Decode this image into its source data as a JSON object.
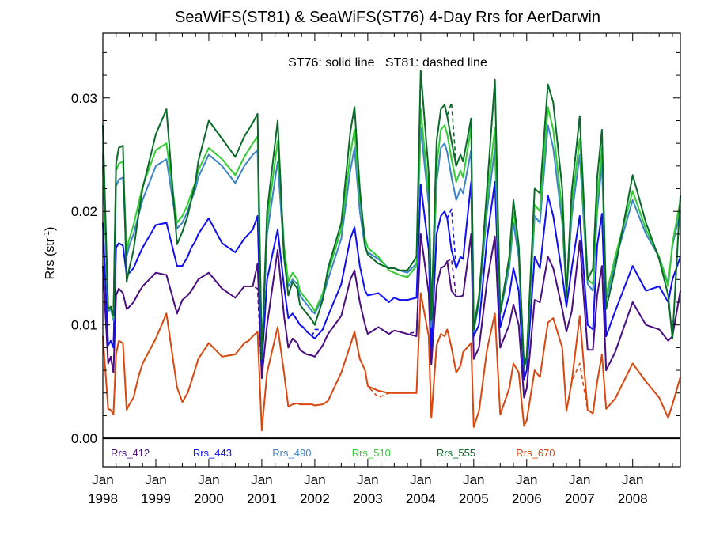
{
  "chart_data": {
    "type": "line",
    "title": "SeaWiFS(ST81) & SeaWiFS(ST76) 4-Day Rrs for AerDarwin",
    "annotation": "ST76: solid line   ST81: dashed line",
    "xlabel": "",
    "ylabel": "Rrs (str",
    "ylabel_sup": "-1",
    "ylabel_close": ")",
    "xlim": [
      1998.0,
      2008.9
    ],
    "ylim": [
      -0.0025,
      0.0357
    ],
    "x_ticks": [
      {
        "top": "Jan",
        "bottom": "1998",
        "value": 1998
      },
      {
        "top": "Jan",
        "bottom": "1999",
        "value": 1999
      },
      {
        "top": "Jan",
        "bottom": "2000",
        "value": 2000
      },
      {
        "top": "Jan",
        "bottom": "2001",
        "value": 2001
      },
      {
        "top": "Jan",
        "bottom": "2002",
        "value": 2002
      },
      {
        "top": "Jan",
        "bottom": "2003",
        "value": 2003
      },
      {
        "top": "Jan",
        "bottom": "2004",
        "value": 2004
      },
      {
        "top": "Jan",
        "bottom": "2005",
        "value": 2005
      },
      {
        "top": "Jan",
        "bottom": "2006",
        "value": 2006
      },
      {
        "top": "Jan",
        "bottom": "2007",
        "value": 2007
      },
      {
        "top": "Jan",
        "bottom": "2008",
        "value": 2008
      }
    ],
    "y_ticks": [
      {
        "value": 0.0,
        "label": "0.00"
      },
      {
        "value": 0.01,
        "label": "0.01"
      },
      {
        "value": 0.02,
        "label": "0.02"
      },
      {
        "value": 0.03,
        "label": "0.03"
      }
    ],
    "zero_line": 0.0,
    "x": [
      1998.0,
      1998.1,
      1998.15,
      1998.2,
      1998.25,
      1998.3,
      1998.38,
      1998.45,
      1998.5,
      1998.58,
      1998.67,
      1998.75,
      1999.0,
      1999.2,
      1999.4,
      1999.5,
      1999.6,
      1999.67,
      1999.75,
      1999.8,
      2000.0,
      2000.25,
      2000.5,
      2000.67,
      2000.75,
      2000.83,
      2000.92,
      2001.0,
      2001.1,
      2001.3,
      2001.42,
      2001.5,
      2001.58,
      2001.67,
      2001.72,
      2001.78,
      2001.85,
      2001.95,
      2002.0,
      2002.15,
      2002.25,
      2002.5,
      2002.67,
      2002.75,
      2002.85,
      2002.95,
      2003.0,
      2003.2,
      2003.4,
      2003.5,
      2003.6,
      2003.75,
      2003.92,
      2004.0,
      2004.15,
      2004.2,
      2004.3,
      2004.38,
      2004.45,
      2004.5,
      2004.58,
      2004.67,
      2004.75,
      2004.8,
      2004.95,
      2005.0,
      2005.1,
      2005.25,
      2005.4,
      2005.5,
      2005.67,
      2005.75,
      2005.85,
      2005.95,
      2006.0,
      2006.15,
      2006.25,
      2006.4,
      2006.5,
      2006.67,
      2006.75,
      2006.85,
      2007.0,
      2007.15,
      2007.25,
      2007.33,
      2007.42,
      2007.5,
      2007.67,
      2008.0,
      2008.25,
      2008.5,
      2008.67,
      2008.75,
      2008.9
    ],
    "series": [
      {
        "name": "Rrs_412",
        "color": "#4b0f82",
        "dashed": [
          {
            "i": 26,
            "y": 0.0132
          },
          {
            "i": 52,
            "y": 0.0094
          },
          {
            "i": 60,
            "y": 0.0158
          }
        ],
        "values": [
          0.0152,
          0.0066,
          0.0072,
          0.0058,
          0.0126,
          0.0132,
          0.0128,
          0.0114,
          0.0116,
          0.012,
          0.0128,
          0.0134,
          0.0146,
          0.0144,
          0.011,
          0.0122,
          0.0126,
          0.013,
          0.0136,
          0.014,
          0.0146,
          0.0132,
          0.0124,
          0.0134,
          0.0134,
          0.0134,
          0.0154,
          0.0053,
          0.01,
          0.0166,
          0.0108,
          0.008,
          0.0088,
          0.0084,
          0.0078,
          0.0076,
          0.0074,
          0.0073,
          0.0072,
          0.0082,
          0.0092,
          0.0108,
          0.014,
          0.0148,
          0.012,
          0.01,
          0.0092,
          0.0098,
          0.0092,
          0.0095,
          0.0094,
          0.0092,
          0.009,
          0.018,
          0.0128,
          0.0065,
          0.0134,
          0.015,
          0.0152,
          0.0156,
          0.013,
          0.0125,
          0.0125,
          0.0126,
          0.018,
          0.007,
          0.008,
          0.0138,
          0.0178,
          0.008,
          0.01,
          0.0118,
          0.01,
          0.0036,
          0.0044,
          0.0122,
          0.012,
          0.016,
          0.015,
          0.0114,
          0.0094,
          0.0112,
          0.0174,
          0.0078,
          0.0078,
          0.0126,
          0.0152,
          0.006,
          0.0076,
          0.012,
          0.01,
          0.0096,
          0.0086,
          0.009,
          0.013
        ]
      },
      {
        "name": "Rrs_443",
        "color": "#1010f0",
        "dashed": [
          {
            "i": 38,
            "y": 0.0096
          },
          {
            "i": 60,
            "y": 0.0202
          }
        ],
        "values": [
          0.019,
          0.0082,
          0.0086,
          0.008,
          0.0168,
          0.0172,
          0.017,
          0.0144,
          0.0146,
          0.015,
          0.016,
          0.0168,
          0.0188,
          0.019,
          0.0152,
          0.0152,
          0.016,
          0.0168,
          0.0174,
          0.018,
          0.0194,
          0.0172,
          0.0164,
          0.0176,
          0.018,
          0.0184,
          0.0196,
          0.0065,
          0.014,
          0.0184,
          0.0134,
          0.0106,
          0.011,
          0.0104,
          0.01,
          0.0098,
          0.0094,
          0.009,
          0.0088,
          0.0096,
          0.0108,
          0.0136,
          0.0176,
          0.0186,
          0.0152,
          0.013,
          0.0126,
          0.0128,
          0.012,
          0.0124,
          0.0122,
          0.0122,
          0.0124,
          0.0224,
          0.0166,
          0.008,
          0.018,
          0.0196,
          0.02,
          0.0194,
          0.0166,
          0.015,
          0.016,
          0.0158,
          0.0226,
          0.009,
          0.01,
          0.0176,
          0.0226,
          0.0098,
          0.0126,
          0.015,
          0.013,
          0.0052,
          0.006,
          0.016,
          0.015,
          0.0214,
          0.0196,
          0.0144,
          0.0116,
          0.015,
          0.0196,
          0.01,
          0.0096,
          0.017,
          0.0198,
          0.009,
          0.0112,
          0.0152,
          0.013,
          0.0134,
          0.012,
          0.014,
          0.016
        ]
      },
      {
        "name": "Rrs_490",
        "color": "#3d85c6",
        "dashed": [
          {
            "i": 60,
            "y": 0.0232
          }
        ],
        "values": [
          0.024,
          0.0112,
          0.0114,
          0.0104,
          0.0222,
          0.0228,
          0.023,
          0.016,
          0.017,
          0.018,
          0.0196,
          0.021,
          0.024,
          0.0246,
          0.0185,
          0.019,
          0.02,
          0.021,
          0.022,
          0.023,
          0.025,
          0.024,
          0.0225,
          0.024,
          0.0245,
          0.025,
          0.0254,
          0.0074,
          0.018,
          0.0244,
          0.0162,
          0.0134,
          0.014,
          0.0136,
          0.0126,
          0.0122,
          0.0118,
          0.0112,
          0.011,
          0.0124,
          0.014,
          0.0176,
          0.0236,
          0.0256,
          0.02,
          0.0168,
          0.0164,
          0.0158,
          0.015,
          0.015,
          0.0148,
          0.0146,
          0.0154,
          0.0274,
          0.0206,
          0.0098,
          0.0226,
          0.0256,
          0.026,
          0.0252,
          0.023,
          0.021,
          0.022,
          0.0216,
          0.0254,
          0.0094,
          0.012,
          0.02,
          0.0256,
          0.011,
          0.015,
          0.019,
          0.016,
          0.0062,
          0.007,
          0.0196,
          0.019,
          0.0276,
          0.0256,
          0.019,
          0.0128,
          0.0196,
          0.025,
          0.0136,
          0.013,
          0.02,
          0.0242,
          0.0122,
          0.0156,
          0.021,
          0.018,
          0.016,
          0.0136,
          0.017,
          0.02
        ]
      },
      {
        "name": "Rrs_510",
        "color": "#33cc33",
        "dashed": [
          {
            "i": 60,
            "y": 0.0248
          }
        ],
        "values": [
          0.025,
          0.0114,
          0.0116,
          0.0106,
          0.0236,
          0.0242,
          0.0244,
          0.0166,
          0.0176,
          0.0188,
          0.0206,
          0.0222,
          0.0254,
          0.026,
          0.019,
          0.0196,
          0.0206,
          0.0216,
          0.0226,
          0.0236,
          0.0256,
          0.0246,
          0.0232,
          0.0248,
          0.0254,
          0.026,
          0.0266,
          0.0076,
          0.019,
          0.0262,
          0.017,
          0.0138,
          0.0146,
          0.014,
          0.013,
          0.0126,
          0.0122,
          0.0116,
          0.0112,
          0.0128,
          0.0146,
          0.0184,
          0.025,
          0.0272,
          0.0212,
          0.0176,
          0.0168,
          0.016,
          0.0148,
          0.0146,
          0.0144,
          0.0142,
          0.0152,
          0.029,
          0.0216,
          0.0104,
          0.024,
          0.0272,
          0.0276,
          0.0268,
          0.0246,
          0.0226,
          0.0236,
          0.023,
          0.0274,
          0.0098,
          0.0126,
          0.021,
          0.0274,
          0.0114,
          0.0156,
          0.02,
          0.0168,
          0.0064,
          0.0072,
          0.0206,
          0.02,
          0.0292,
          0.0272,
          0.02,
          0.0132,
          0.0206,
          0.0264,
          0.014,
          0.0136,
          0.021,
          0.0256,
          0.0126,
          0.016,
          0.0218,
          0.0184,
          0.016,
          0.0134,
          0.0172,
          0.021
        ]
      },
      {
        "name": "Rrs_555",
        "color": "#0a6b2a",
        "dashed": [
          {
            "i": 60,
            "y": 0.0296
          }
        ],
        "values": [
          0.0276,
          0.0114,
          0.0116,
          0.0108,
          0.0242,
          0.0256,
          0.0258,
          0.0138,
          0.015,
          0.0166,
          0.0196,
          0.022,
          0.0268,
          0.029,
          0.0171,
          0.0182,
          0.0196,
          0.021,
          0.0226,
          0.0244,
          0.028,
          0.0264,
          0.0248,
          0.0266,
          0.0272,
          0.0278,
          0.0286,
          0.007,
          0.02,
          0.028,
          0.016,
          0.0126,
          0.0138,
          0.0132,
          0.0118,
          0.0114,
          0.011,
          0.0104,
          0.01,
          0.0122,
          0.015,
          0.019,
          0.027,
          0.0292,
          0.022,
          0.017,
          0.0162,
          0.0154,
          0.015,
          0.015,
          0.0148,
          0.0148,
          0.016,
          0.0324,
          0.0234,
          0.0104,
          0.0262,
          0.029,
          0.0294,
          0.0284,
          0.0262,
          0.024,
          0.025,
          0.0244,
          0.0282,
          0.0096,
          0.0124,
          0.022,
          0.0316,
          0.011,
          0.016,
          0.021,
          0.017,
          0.0062,
          0.0072,
          0.022,
          0.0216,
          0.0312,
          0.0296,
          0.022,
          0.0124,
          0.0218,
          0.0284,
          0.014,
          0.015,
          0.023,
          0.0272,
          0.0114,
          0.015,
          0.0232,
          0.019,
          0.0158,
          0.0126,
          0.0088,
          0.0214
        ]
      },
      {
        "name": "Rrs_670",
        "color": "#d9480f",
        "dashed": [
          {
            "i": 47,
            "y": 0.0036
          },
          {
            "i": 82,
            "y": 0.0066
          }
        ],
        "values": [
          0.009,
          0.0026,
          0.0025,
          0.0021,
          0.0074,
          0.0086,
          0.0084,
          0.0025,
          0.003,
          0.0036,
          0.0054,
          0.0066,
          0.0088,
          0.011,
          0.0045,
          0.0032,
          0.004,
          0.005,
          0.0062,
          0.007,
          0.0084,
          0.0072,
          0.0074,
          0.0084,
          0.0086,
          0.009,
          0.0094,
          0.0007,
          0.0058,
          0.0098,
          0.0058,
          0.0028,
          0.003,
          0.0031,
          0.003,
          0.003,
          0.003,
          0.003,
          0.0029,
          0.003,
          0.0033,
          0.0058,
          0.0082,
          0.0094,
          0.007,
          0.006,
          0.0046,
          0.0042,
          0.004,
          0.004,
          0.004,
          0.004,
          0.004,
          0.0128,
          0.009,
          0.0018,
          0.0082,
          0.0092,
          0.009,
          0.0096,
          0.008,
          0.0058,
          0.0064,
          0.0076,
          0.0084,
          0.001,
          0.0024,
          0.0078,
          0.011,
          0.0021,
          0.0044,
          0.0066,
          0.0058,
          0.0011,
          0.0016,
          0.006,
          0.0054,
          0.0102,
          0.0106,
          0.008,
          0.0024,
          0.005,
          0.0108,
          0.0025,
          0.0022,
          0.005,
          0.0074,
          0.0026,
          0.0035,
          0.0066,
          0.005,
          0.0036,
          0.0018,
          0.003,
          0.0054
        ]
      }
    ],
    "legend": {
      "placement": "bottom inside plot",
      "entries": [
        {
          "label": "Rrs_412",
          "color": "#4b0f82",
          "x": 1998.15
        },
        {
          "label": "Rrs_443",
          "color": "#1010f0",
          "x": 1999.7
        },
        {
          "label": "Rrs_490",
          "color": "#3d85c6",
          "x": 2001.2
        },
        {
          "label": "Rrs_510",
          "color": "#33cc33",
          "x": 2002.7
        },
        {
          "label": "Rrs_555",
          "color": "#0a6b2a",
          "x": 2004.3
        },
        {
          "label": "Rrs_670",
          "color": "#d9480f",
          "x": 2005.8
        }
      ]
    }
  }
}
